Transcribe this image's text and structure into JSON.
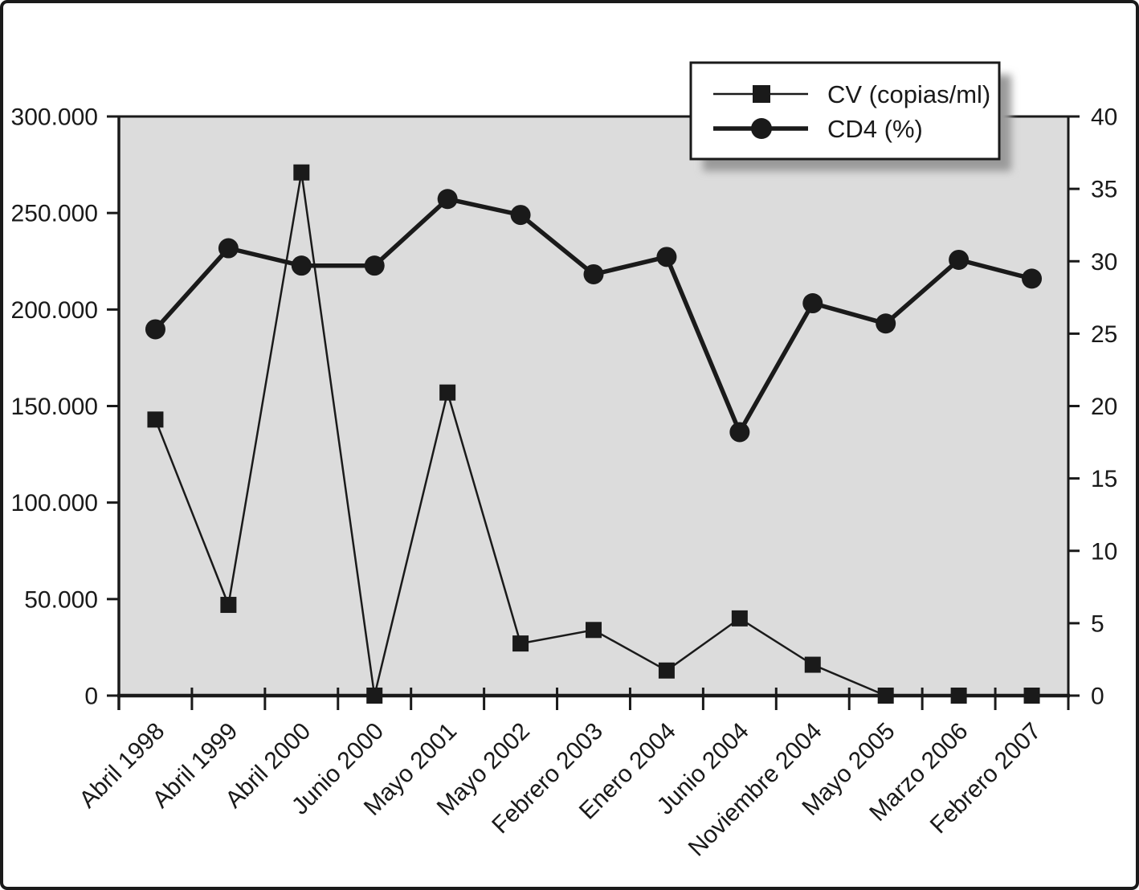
{
  "colors": {
    "ink": "#1a1a1a",
    "plot_background": "#dcdcdc",
    "figure_background": "#ffffff",
    "legend_shadow": "#9a9a9a"
  },
  "chart_data": {
    "type": "line",
    "title": "",
    "xlabel": "",
    "ylabel_left": "CV (copias/ml)",
    "ylabel_right": "CD4 (%)",
    "grid": false,
    "plot_background": "#dcdcdc",
    "categories": [
      "Abril 1998",
      "Abril 1999",
      "Abril 2000",
      "Junio 2000",
      "Mayo 2001",
      "Mayo 2002",
      "Febrero 2003",
      "Enero 2004",
      "Junio 2004",
      "Noviembre 2004",
      "Mayo 2005",
      "Marzo 2006",
      "Febrero 2007"
    ],
    "series": [
      {
        "name": "CV (copias/ml)",
        "axis": "left",
        "marker": "square",
        "line_weight": "thin",
        "values": [
          143000,
          47000,
          271000,
          0,
          157000,
          27000,
          34000,
          13000,
          40000,
          16000,
          0,
          0,
          0
        ]
      },
      {
        "name": "CD4 (%)",
        "axis": "right",
        "marker": "circle",
        "line_weight": "thick",
        "values": [
          25.3,
          30.9,
          29.7,
          29.7,
          34.3,
          33.2,
          29.1,
          30.3,
          18.2,
          27.1,
          25.7,
          30.1,
          28.8
        ]
      }
    ],
    "left_axis": {
      "min": 0,
      "max": 300000,
      "tick_step": 50000,
      "ticks": [
        "300.000",
        "250.000",
        "200.000",
        "150.000",
        "100.000",
        "50.000",
        "0"
      ]
    },
    "right_axis": {
      "min": 0,
      "max": 40,
      "tick_step": 5,
      "ticks": [
        "40",
        "35",
        "30",
        "25",
        "20",
        "15",
        "10",
        "5",
        "0"
      ]
    },
    "legend": {
      "position": "top-right"
    }
  }
}
